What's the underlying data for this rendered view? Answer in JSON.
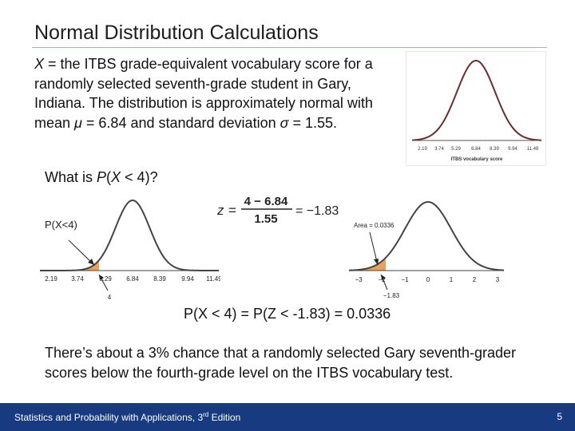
{
  "title": "Normal Distribution Calculations",
  "intro": {
    "var": "X",
    "text_1": " = the ITBS grade-equivalent vocabulary score for a randomly selected seventh-grade student in Gary, Indiana. The distribution is approximately normal with mean ",
    "mu": "μ",
    "text_2": " = 6.84 and standard deviation ",
    "sigma": "σ",
    "text_3": " = 1.55."
  },
  "question": {
    "pre": "What is ",
    "p": "P",
    "open": "(",
    "x": "X",
    "rest": " < 4)?"
  },
  "top_chart": {
    "ticks": [
      "2.19",
      "3.74",
      "5.29",
      "6.84",
      "8.39",
      "9.94",
      "11.49"
    ],
    "axis_label": "ITBS vocabulary score"
  },
  "left_chart": {
    "label": "P(X<4)",
    "ticks": [
      "2.19",
      "3.74",
      "5.29",
      "6.84",
      "8.39",
      "9.94",
      "11.49"
    ],
    "arrow_label": "4",
    "shade_color": "#e8a15a"
  },
  "formula": {
    "z": "z",
    "eq": "=",
    "numerator": "4 − 6.84",
    "denominator": "1.55",
    "result": "= −1.83"
  },
  "right_chart": {
    "area_label": "Area = 0.0336",
    "ticks": [
      "−3",
      "−2",
      "−1",
      "0",
      "1",
      "2",
      "3"
    ],
    "arrow_label": "−1.83",
    "shade_color": "#e8a15a"
  },
  "result": "P(X < 4) = P(Z < -1.83) = 0.0336",
  "conclusion": "There’s about a 3% chance that a randomly selected Gary seventh-grader scores below the fourth-grade level on the ITBS vocabulary test.",
  "footer": {
    "text": "Statistics and Probability with Applications, 3",
    "sup": "rd",
    "tail": " Edition",
    "page": "5"
  }
}
